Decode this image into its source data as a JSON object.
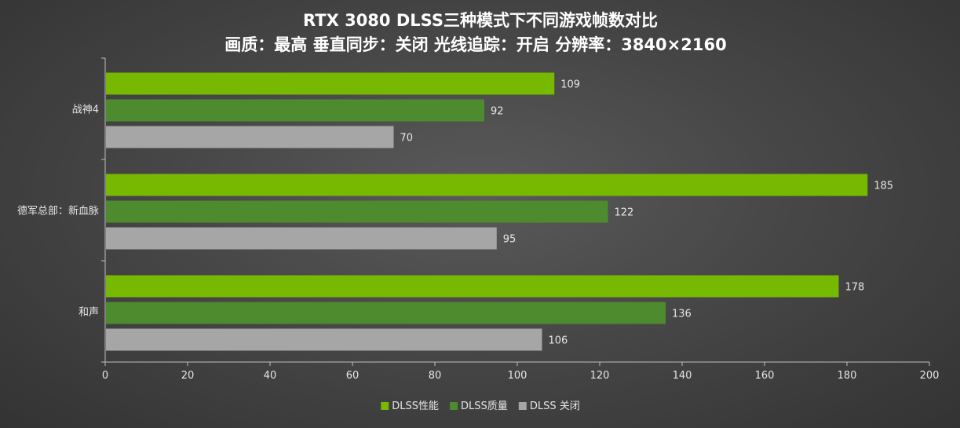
{
  "chart_data": {
    "type": "bar",
    "orientation": "horizontal",
    "title": "RTX 3080 DLSS三种模式下不同游戏帧数对比",
    "subtitle": "画质：最高 垂直同步：关闭 光线追踪：开启 分辨率：3840×2160",
    "categories": [
      "战神4",
      "德军总部：新血脉",
      "和声"
    ],
    "series": [
      {
        "name": "DLSS性能",
        "color": "#76b900",
        "values": [
          109,
          185,
          178
        ]
      },
      {
        "name": "DLSS质量",
        "color": "#4e8a2e",
        "values": [
          92,
          122,
          136
        ]
      },
      {
        "name": "DLSS 关闭",
        "color": "#a6a6a6",
        "values": [
          70,
          95,
          106
        ]
      }
    ],
    "xlim": [
      0,
      200
    ],
    "xticks": [
      0,
      20,
      40,
      60,
      80,
      100,
      120,
      140,
      160,
      180,
      200
    ],
    "xlabel": "",
    "ylabel": "",
    "grid": false,
    "legend_position": "bottom-center"
  }
}
